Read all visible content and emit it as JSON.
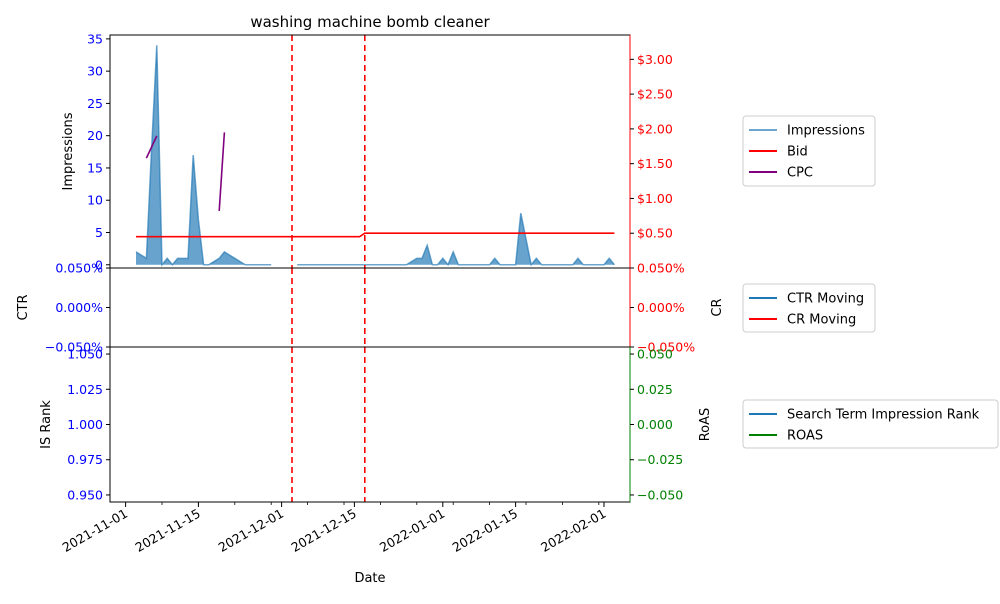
{
  "chart_data": {
    "type": "multi-panel",
    "title": "washing machine bomb cleaner",
    "xlabel": "Date",
    "x_ticks": [
      "2021-11-01",
      "2021-11-15",
      "2021-12-01",
      "2021-12-15",
      "2022-01-01",
      "2022-01-15",
      "2022-02-01"
    ],
    "x_range": [
      "2021-10-29",
      "2022-02-06"
    ],
    "vlines": {
      "color": "#ff0000",
      "style": "dashed",
      "dates": [
        "2021-12-03",
        "2021-12-17"
      ]
    },
    "panels": [
      {
        "id": "top",
        "left_axis": {
          "label": "Impressions",
          "color": "#0000ff",
          "range": [
            -0.5,
            35.6
          ],
          "ticks": [
            0,
            5,
            10,
            15,
            20,
            25,
            30,
            35
          ],
          "tick_labels": [
            "0",
            "5",
            "10",
            "15",
            "20",
            "25",
            "30",
            "35"
          ]
        },
        "right_axis": {
          "label": "",
          "color": "#ff0000",
          "range": [
            0,
            3.35
          ],
          "ticks": [
            0.5,
            1.0,
            1.5,
            2.0,
            2.5,
            3.0
          ],
          "tick_labels": [
            "$0.50",
            "$1.00",
            "$1.50",
            "$2.00",
            "$2.50",
            "$3.00"
          ]
        },
        "series": [
          {
            "name": "Impressions",
            "axis": "left",
            "kind": "area",
            "color": "#1f77b4",
            "segments": [
              {
                "x": [
                  "2021-11-03",
                  "2021-11-05",
                  "2021-11-06",
                  "2021-11-07",
                  "2021-11-08",
                  "2021-11-09",
                  "2021-11-10",
                  "2021-11-11",
                  "2021-11-12",
                  "2021-11-13",
                  "2021-11-14",
                  "2021-11-15",
                  "2021-11-16",
                  "2021-11-17",
                  "2021-11-18",
                  "2021-11-19",
                  "2021-11-20",
                  "2021-11-21",
                  "2021-11-22",
                  "2021-11-23",
                  "2021-11-24",
                  "2021-11-25",
                  "2021-11-26",
                  "2021-11-27",
                  "2021-11-28",
                  "2021-11-29"
                ],
                "y": [
                  2,
                  1,
                  18,
                  34,
                  0,
                  1,
                  0,
                  1,
                  1,
                  1,
                  17,
                  7,
                  0,
                  0,
                  0.5,
                  1,
                  2,
                  1.5,
                  1,
                  0.5,
                  0,
                  0,
                  0,
                  0,
                  0,
                  0
                ]
              },
              {
                "x": [
                  "2021-12-04",
                  "2021-12-06",
                  "2021-12-10",
                  "2021-12-15",
                  "2021-12-20",
                  "2021-12-25",
                  "2021-12-27",
                  "2021-12-28",
                  "2021-12-29",
                  "2021-12-30",
                  "2021-12-31",
                  "2022-01-01",
                  "2022-01-02",
                  "2022-01-03",
                  "2022-01-04",
                  "2022-01-05",
                  "2022-01-06",
                  "2022-01-07",
                  "2022-01-08",
                  "2022-01-09",
                  "2022-01-10",
                  "2022-01-11",
                  "2022-01-12",
                  "2022-01-13",
                  "2022-01-14",
                  "2022-01-15",
                  "2022-01-16",
                  "2022-01-17",
                  "2022-01-18",
                  "2022-01-19",
                  "2022-01-20",
                  "2022-01-21",
                  "2022-01-22",
                  "2022-01-23",
                  "2022-01-24",
                  "2022-01-25",
                  "2022-01-26",
                  "2022-01-27",
                  "2022-01-28",
                  "2022-01-29",
                  "2022-01-30",
                  "2022-01-31",
                  "2022-02-01",
                  "2022-02-02",
                  "2022-02-03"
                ],
                "y": [
                  0,
                  0,
                  0,
                  0,
                  0,
                  0,
                  1,
                  1,
                  3,
                  0,
                  0,
                  1,
                  0,
                  2,
                  0,
                  0,
                  0,
                  0,
                  0,
                  0,
                  0,
                  1,
                  0,
                  0,
                  0,
                  0,
                  8,
                  4,
                  0,
                  1,
                  0,
                  0,
                  0,
                  0,
                  0,
                  0,
                  0,
                  1,
                  0,
                  0,
                  0,
                  0,
                  0,
                  1,
                  0
                ]
              }
            ]
          },
          {
            "name": "Bid",
            "axis": "right",
            "kind": "line",
            "color": "#ff0000",
            "segments": [
              {
                "x": [
                  "2021-11-03",
                  "2021-12-16",
                  "2021-12-17",
                  "2022-02-03"
                ],
                "y": [
                  0.45,
                  0.45,
                  0.5,
                  0.5
                ]
              }
            ]
          },
          {
            "name": "CPC",
            "axis": "right",
            "kind": "line",
            "color": "#800080",
            "segments": [
              {
                "x": [
                  "2021-11-05",
                  "2021-11-07"
                ],
                "y": [
                  1.58,
                  1.9
                ]
              },
              {
                "x": [
                  "2021-11-19",
                  "2021-11-20"
                ],
                "y": [
                  0.82,
                  1.95
                ]
              }
            ]
          }
        ],
        "legend_position": "outside-right"
      },
      {
        "id": "middle",
        "left_axis": {
          "label": "CTR",
          "color": "#0000ff",
          "range": [
            -0.0005,
            0.0005
          ],
          "ticks": [
            -0.0005,
            0,
            0.0005
          ],
          "tick_labels": [
            "−0.050%",
            "0.000%",
            "0.050%"
          ]
        },
        "right_axis": {
          "label": "CR",
          "color": "#ff0000",
          "range": [
            -0.0005,
            0.0005
          ],
          "ticks": [
            -0.0005,
            0,
            0.0005
          ],
          "tick_labels": [
            "−0.050%",
            "0.000%",
            "0.050%"
          ]
        },
        "series": [
          {
            "name": "CTR Moving",
            "axis": "left",
            "kind": "line",
            "color": "#1f77b4",
            "segments": []
          },
          {
            "name": "CR Moving",
            "axis": "right",
            "kind": "line",
            "color": "#ff0000",
            "segments": []
          }
        ],
        "legend_position": "outside-right"
      },
      {
        "id": "bottom",
        "left_axis": {
          "label": "IS Rank",
          "color": "#0000ff",
          "range": [
            0.945,
            1.055
          ],
          "ticks": [
            0.95,
            0.975,
            1.0,
            1.025,
            1.05
          ],
          "tick_labels": [
            "0.950",
            "0.975",
            "1.000",
            "1.025",
            "1.050"
          ]
        },
        "right_axis": {
          "label": "RoAS",
          "color": "#008000",
          "range": [
            -0.055,
            0.055
          ],
          "ticks": [
            -0.05,
            -0.025,
            0,
            0.025,
            0.05
          ],
          "tick_labels": [
            "−0.050",
            "−0.025",
            "0.000",
            "0.025",
            "0.050"
          ]
        },
        "series": [
          {
            "name": "Search Term Impression Rank",
            "axis": "left",
            "kind": "line",
            "color": "#1f77b4",
            "segments": []
          },
          {
            "name": "ROAS",
            "axis": "right",
            "kind": "line",
            "color": "#008000",
            "segments": []
          }
        ],
        "legend_position": "outside-right"
      }
    ]
  }
}
